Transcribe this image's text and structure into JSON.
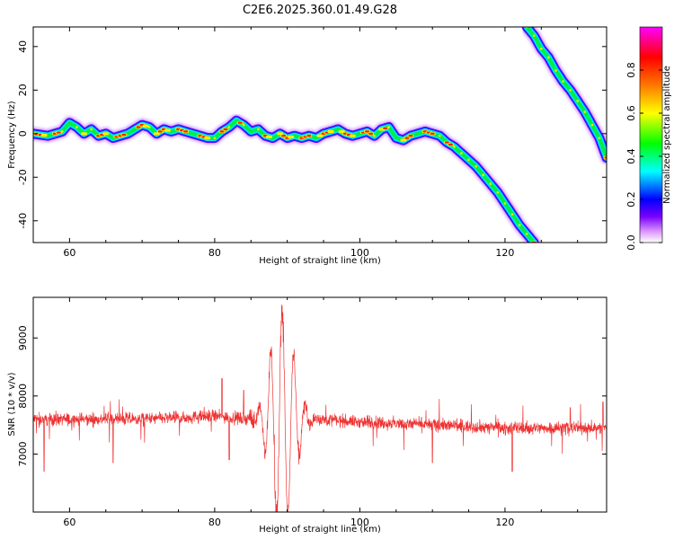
{
  "title": "C2E6.2025.360.01.49.G28",
  "chart_data": [
    {
      "type": "heatmap",
      "xlabel": "Height of straight line (km)",
      "ylabel": "Frequency (Hz)",
      "xlim": [
        55,
        134
      ],
      "ylim": [
        -50,
        49
      ],
      "x_ticks": [
        60,
        80,
        100,
        120
      ],
      "y_ticks": [
        -40,
        -20,
        0,
        20,
        40
      ],
      "colorbar": {
        "label": "Normalized spectral amplitude",
        "range": [
          0,
          1
        ],
        "ticks": [
          0.0,
          0.2,
          0.4,
          0.6,
          0.8
        ],
        "colormap": [
          "#ffffff",
          "#dd99ff",
          "#5500ff",
          "#0000ff",
          "#00ffff",
          "#00ff00",
          "#ffff00",
          "#ff7700",
          "#ff0000",
          "#ff00ff"
        ]
      },
      "ridges": [
        {
          "x": [
            55,
            57,
            59,
            60,
            61,
            62,
            63,
            64,
            65,
            66,
            67,
            68,
            69,
            70,
            71,
            72,
            73,
            74,
            75,
            76,
            77,
            78,
            79,
            80,
            81,
            82,
            83,
            84,
            85,
            86,
            87,
            88,
            89,
            90,
            91,
            92,
            93,
            94,
            95,
            96,
            97,
            98,
            99,
            100,
            101,
            102,
            103,
            104,
            105,
            106,
            107,
            108,
            109,
            110,
            111,
            112,
            113,
            114,
            115,
            116,
            117,
            118,
            119,
            120,
            121,
            122,
            123,
            124
          ],
          "y": [
            0,
            -1,
            1,
            5,
            3,
            0,
            2,
            -1,
            0,
            -2,
            -1,
            0,
            2,
            4,
            3,
            0,
            2,
            1,
            2,
            1,
            0,
            -1,
            -2,
            -2,
            1,
            3,
            6,
            4,
            1,
            2,
            -1,
            -2,
            0,
            -2,
            -1,
            -2,
            -1,
            -2,
            0,
            1,
            2,
            0,
            -1,
            0,
            1,
            -1,
            2,
            3,
            -2,
            -3,
            -1,
            0,
            1,
            0,
            -1,
            -4,
            -6,
            -9,
            -12,
            -15,
            -19,
            -23,
            -27,
            -32,
            -37,
            -42,
            -46,
            -50
          ]
        },
        {
          "x": [
            123,
            124,
            125,
            126,
            127,
            128,
            129,
            130,
            131,
            132,
            133,
            134
          ],
          "y": [
            49,
            45,
            39,
            35,
            29,
            24,
            20,
            15,
            10,
            4,
            -2,
            -11
          ]
        }
      ]
    },
    {
      "type": "line",
      "xlabel": "Height of straight line (km)",
      "ylabel": "SNR (10 * v/v)",
      "xlim": [
        55,
        134
      ],
      "ylim": [
        6000,
        9700
      ],
      "x_ticks": [
        60,
        80,
        100,
        120
      ],
      "y_ticks": [
        7000,
        8000,
        9000
      ],
      "series": [
        {
          "color": "#ee3333",
          "baseline": [
            [
              55,
              7600
            ],
            [
              70,
              7600
            ],
            [
              80,
              7650
            ],
            [
              85,
              7600
            ],
            [
              95,
              7600
            ],
            [
              100,
              7550
            ],
            [
              110,
              7500
            ],
            [
              120,
              7450
            ],
            [
              134,
              7450
            ]
          ],
          "noise_amplitude": 160,
          "burst": {
            "center_x": 89.3,
            "envelope_width": 2.2,
            "peak_amplitude": 1900,
            "period": 1.6
          },
          "spikes": [
            [
              56.5,
              6700
            ],
            [
              66,
              6850
            ],
            [
              81,
              8300
            ],
            [
              82,
              6900
            ],
            [
              84,
              8100
            ],
            [
              110,
              6850
            ],
            [
              121,
              6700
            ],
            [
              129,
              7800
            ],
            [
              133.5,
              7900
            ]
          ]
        }
      ]
    }
  ]
}
